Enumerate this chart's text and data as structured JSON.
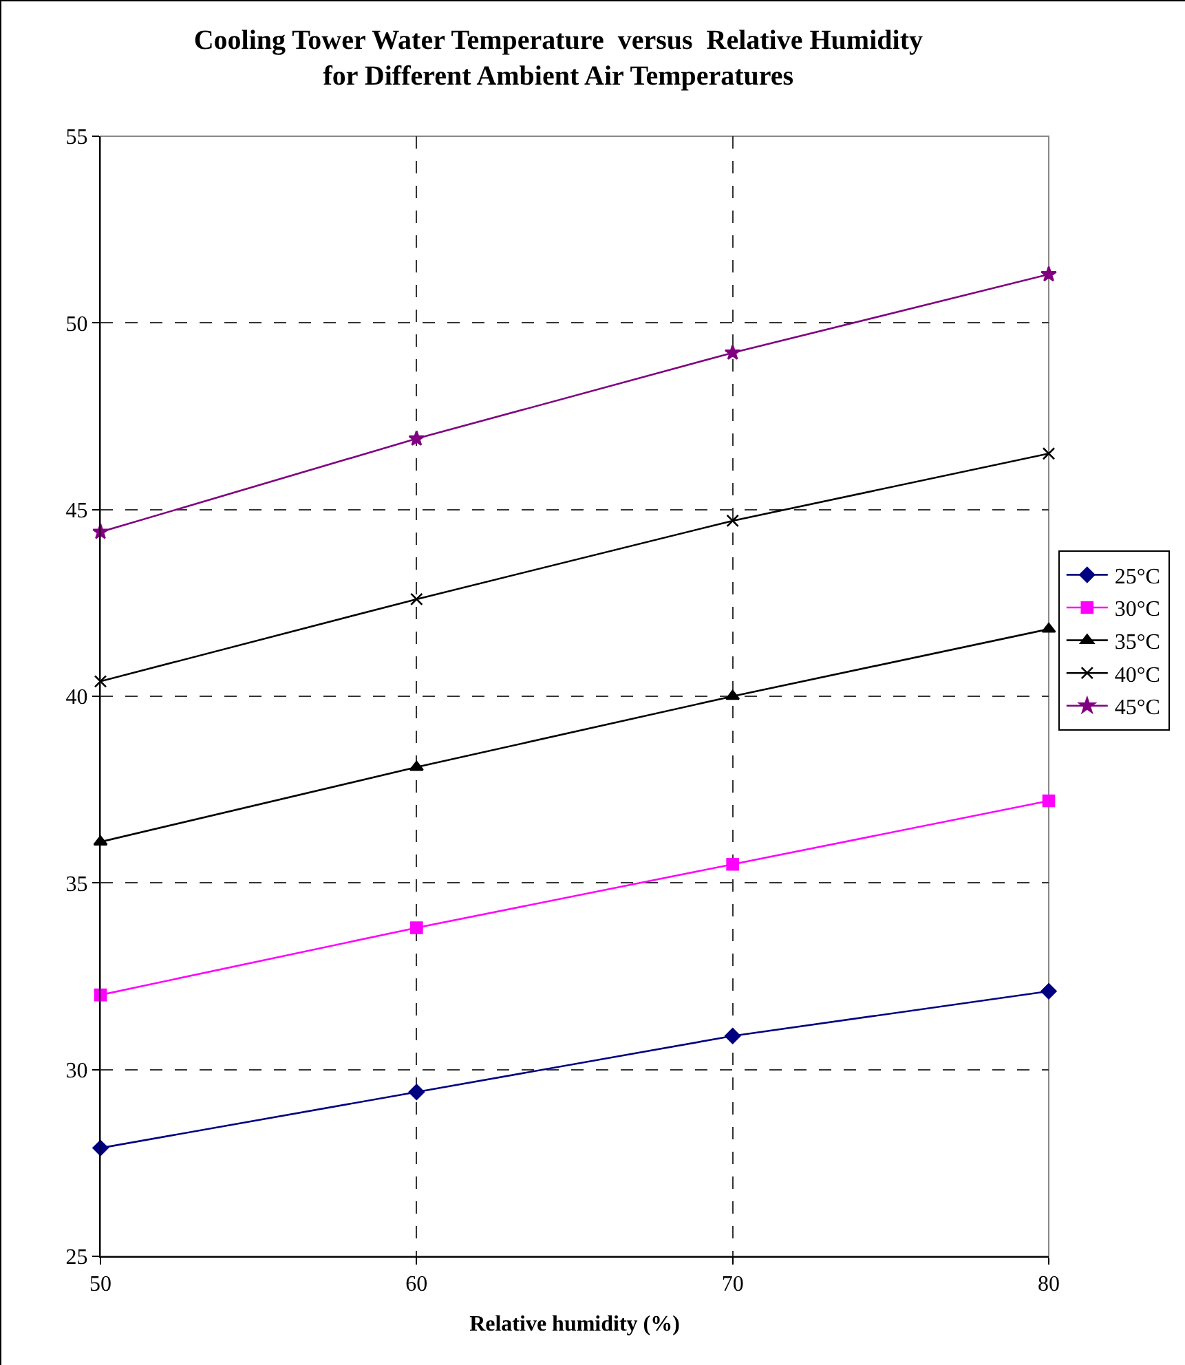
{
  "chart_data": {
    "type": "line",
    "title": "Cooling Tower Water Temperature  versus  Relative Humidity\nfor Different Ambient Air Temperatures",
    "xlabel": "Relative humidity (%)",
    "x": [
      50,
      60,
      70,
      80
    ],
    "xlim": [
      50,
      80
    ],
    "xticks": [
      50,
      60,
      70,
      80
    ],
    "ylim": [
      25,
      55
    ],
    "yticks": [
      25,
      30,
      35,
      40,
      45,
      50,
      55
    ],
    "grid": true,
    "legend": "right",
    "line_style": "solid",
    "series": [
      {
        "name": "25°C",
        "color": "#000080",
        "marker": "diamond",
        "values": [
          27.9,
          29.4,
          30.9,
          32.1
        ]
      },
      {
        "name": "30°C",
        "color": "#ff00ff",
        "marker": "square",
        "values": [
          32.0,
          33.8,
          35.5,
          37.2
        ]
      },
      {
        "name": "35°C",
        "color": "#000000",
        "marker": "triangle",
        "values": [
          36.1,
          38.1,
          40.0,
          41.8
        ]
      },
      {
        "name": "40°C",
        "color": "#000000",
        "marker": "cross",
        "values": [
          40.4,
          42.6,
          44.7,
          46.5
        ]
      },
      {
        "name": "45°C",
        "color": "#800080",
        "marker": "star",
        "values": [
          44.4,
          46.9,
          49.2,
          51.3
        ]
      }
    ]
  }
}
